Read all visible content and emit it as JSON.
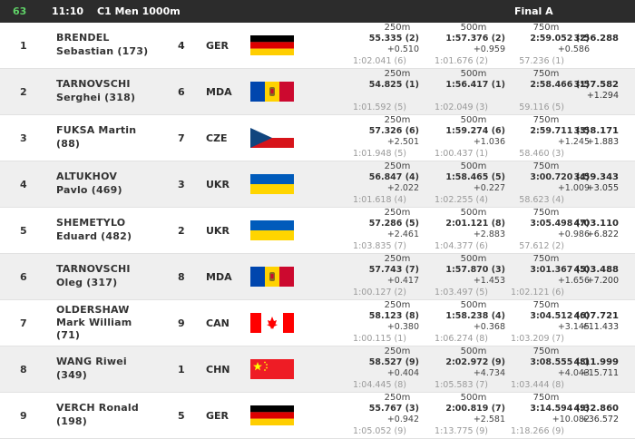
{
  "header": {
    "race_number": "63",
    "time": "11:10",
    "event": "C1 Men 1000m",
    "phase": "Final A"
  },
  "split_labels": [
    "250m",
    "500m",
    "750m"
  ],
  "rows": [
    {
      "rank": "1",
      "name_line1": "BRENDEL",
      "name_line2": "Sebastian (173)",
      "lane": "4",
      "noc": "GER",
      "flag": "germany-flag",
      "splits": [
        {
          "time": "55.335 (2)",
          "diff": "+0.510",
          "split": "1:02.041 (6)"
        },
        {
          "time": "1:57.376 (2)",
          "diff": "+0.959",
          "split": "1:01.676 (2)"
        },
        {
          "time": "2:59.052 (2)",
          "diff": "+0.586",
          "split": "57.236 (1)"
        }
      ],
      "final": "3:56.288",
      "final_diff": ""
    },
    {
      "rank": "2",
      "name_line1": "TARNOVSCHI",
      "name_line2": "Serghei (318)",
      "lane": "6",
      "noc": "MDA",
      "flag": "moldova-flag",
      "splits": [
        {
          "time": "54.825 (1)",
          "diff": "",
          "split": "1:01.592 (5)"
        },
        {
          "time": "1:56.417 (1)",
          "diff": "",
          "split": "1:02.049 (3)"
        },
        {
          "time": "2:58.466 (1)",
          "diff": "",
          "split": "59.116 (5)"
        }
      ],
      "final": "3:57.582",
      "final_diff": "+1.294"
    },
    {
      "rank": "3",
      "name_line1": "FUKSA Martin",
      "name_line2": "(88)",
      "lane": "7",
      "noc": "CZE",
      "flag": "czech-flag",
      "splits": [
        {
          "time": "57.326 (6)",
          "diff": "+2.501",
          "split": "1:01.948 (5)"
        },
        {
          "time": "1:59.274 (6)",
          "diff": "+1.036",
          "split": "1:00.437 (1)"
        },
        {
          "time": "2:59.711 (3)",
          "diff": "+1.245",
          "split": "58.460 (3)"
        }
      ],
      "final": "3:58.171",
      "final_diff": "+1.883"
    },
    {
      "rank": "4",
      "name_line1": "ALTUKHOV",
      "name_line2": "Pavlo (469)",
      "lane": "3",
      "noc": "UKR",
      "flag": "ukraine-flag",
      "splits": [
        {
          "time": "56.847 (4)",
          "diff": "+2.022",
          "split": "1:01.618 (4)"
        },
        {
          "time": "1:58.465 (5)",
          "diff": "+0.227",
          "split": "1:02.255 (4)"
        },
        {
          "time": "3:00.720 (4)",
          "diff": "+1.009",
          "split": "58.623 (4)"
        }
      ],
      "final": "3:59.343",
      "final_diff": "+3.055"
    },
    {
      "rank": "5",
      "name_line1": "SHEMETYLO",
      "name_line2": "Eduard (482)",
      "lane": "2",
      "noc": "UKR",
      "flag": "ukraine-flag",
      "splits": [
        {
          "time": "57.286 (5)",
          "diff": "+2.461",
          "split": "1:03.835 (7)"
        },
        {
          "time": "2:01.121 (8)",
          "diff": "+2.883",
          "split": "1:04.377 (6)"
        },
        {
          "time": "3:05.498 (7)",
          "diff": "+0.986",
          "split": "57.612 (2)"
        }
      ],
      "final": "4:03.110",
      "final_diff": "+6.822"
    },
    {
      "rank": "6",
      "name_line1": "TARNOVSCHI",
      "name_line2": "Oleg (317)",
      "lane": "8",
      "noc": "MDA",
      "flag": "moldova-flag",
      "splits": [
        {
          "time": "57.743 (7)",
          "diff": "+0.417",
          "split": "1:00.127 (2)"
        },
        {
          "time": "1:57.870 (3)",
          "diff": "+1.453",
          "split": "1:03.497 (5)"
        },
        {
          "time": "3:01.367 (5)",
          "diff": "+1.656",
          "split": "1:02.121 (6)"
        }
      ],
      "final": "4:03.488",
      "final_diff": "+7.200"
    },
    {
      "rank": "7",
      "name_line1": "OLDERSHAW",
      "name_line2": "Mark William",
      "name_line3": "(71)",
      "lane": "9",
      "noc": "CAN",
      "flag": "canada-flag",
      "splits": [
        {
          "time": "58.123 (8)",
          "diff": "+0.380",
          "split": "1:00.115 (1)"
        },
        {
          "time": "1:58.238 (4)",
          "diff": "+0.368",
          "split": "1:06.274 (8)"
        },
        {
          "time": "3:04.512 (6)",
          "diff": "+3.145",
          "split": "1:03.209 (7)"
        }
      ],
      "final": "4:07.721",
      "final_diff": "+11.433"
    },
    {
      "rank": "8",
      "name_line1": "WANG Riwei",
      "name_line2": "(349)",
      "lane": "1",
      "noc": "CHN",
      "flag": "china-flag",
      "splits": [
        {
          "time": "58.527 (9)",
          "diff": "+0.404",
          "split": "1:04.445 (8)"
        },
        {
          "time": "2:02.972 (9)",
          "diff": "+4.734",
          "split": "1:05.583 (7)"
        },
        {
          "time": "3:08.555 (8)",
          "diff": "+4.043",
          "split": "1:03.444 (8)"
        }
      ],
      "final": "4:11.999",
      "final_diff": "+15.711"
    },
    {
      "rank": "9",
      "name_line1": "VERCH Ronald",
      "name_line2": "(198)",
      "lane": "5",
      "noc": "GER",
      "flag": "germany-flag",
      "splits": [
        {
          "time": "55.767 (3)",
          "diff": "+0.942",
          "split": "1:05.052 (9)"
        },
        {
          "time": "2:00.819 (7)",
          "diff": "+2.581",
          "split": "1:13.775 (9)"
        },
        {
          "time": "3:14.594 (9)",
          "diff": "+10.082",
          "split": "1:18.266 (9)"
        }
      ],
      "final": "4:32.860",
      "final_diff": "+36.572"
    }
  ],
  "colors": {
    "header_bg": "#2c2c2c",
    "race_number": "#5fd067",
    "row_alt": "#efefef",
    "muted": "#9a9a9a"
  }
}
